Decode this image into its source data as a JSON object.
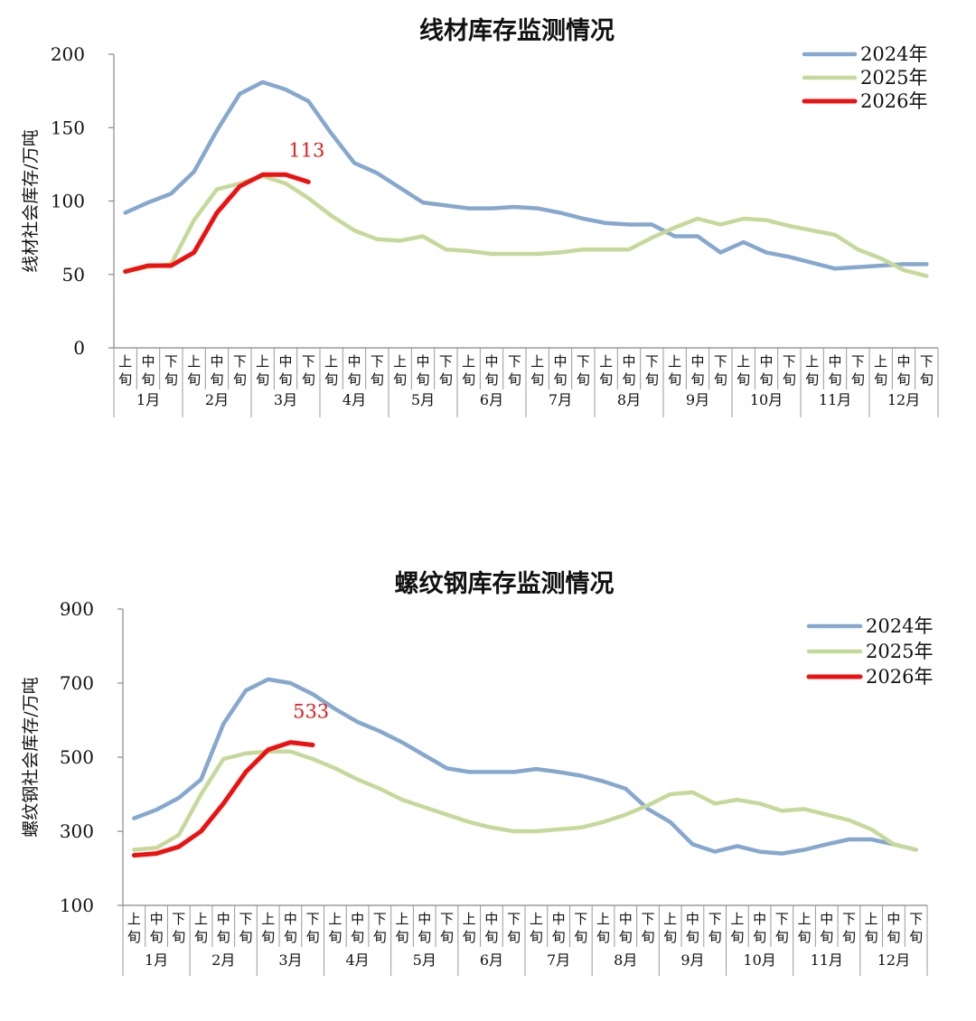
{
  "chart_data": [
    {
      "type": "line",
      "title": "线材库存监测情况",
      "ylabel": "线材社会库存/万吨",
      "xlabel": "",
      "ylim": [
        0,
        200
      ],
      "yticks": [
        0,
        50,
        100,
        150,
        200
      ],
      "months": [
        "1月",
        "2月",
        "3月",
        "4月",
        "5月",
        "6月",
        "7月",
        "8月",
        "9月",
        "10月",
        "11月",
        "12月"
      ],
      "periods": [
        "上旬",
        "中旬",
        "下旬"
      ],
      "legend": "top-right",
      "annotation": {
        "text": "113",
        "series": "2026年"
      },
      "series": [
        {
          "name": "2024年",
          "color": "#86a8cf",
          "values": [
            92,
            99,
            105,
            120,
            148,
            173,
            181,
            176,
            168,
            146,
            126,
            119,
            109,
            99,
            97,
            95,
            95,
            96,
            95,
            92,
            88,
            85,
            84,
            84,
            76,
            76,
            65,
            72,
            65,
            62,
            58,
            54,
            55,
            56,
            57,
            57
          ]
        },
        {
          "name": "2025年",
          "color": "#c5d99a",
          "values": [
            52,
            55,
            57,
            87,
            108,
            112,
            117,
            112,
            102,
            90,
            80,
            74,
            73,
            76,
            67,
            66,
            64,
            64,
            64,
            65,
            67,
            67,
            67,
            75,
            82,
            88,
            84,
            88,
            87,
            83,
            80,
            77,
            67,
            61,
            53,
            49
          ]
        },
        {
          "name": "2026年",
          "color": "#ee1111",
          "values": [
            52,
            56,
            56,
            65,
            92,
            110,
            118,
            118,
            113
          ]
        }
      ]
    },
    {
      "type": "line",
      "title": "螺纹钢库存监测情况",
      "ylabel": "螺纹钢社会库存/万吨",
      "xlabel": "",
      "ylim": [
        100,
        900
      ],
      "yticks": [
        100,
        300,
        500,
        700,
        900
      ],
      "months": [
        "1月",
        "2月",
        "3月",
        "4月",
        "5月",
        "6月",
        "7月",
        "8月",
        "9月",
        "10月",
        "11月",
        "12月"
      ],
      "periods": [
        "上旬",
        "中旬",
        "下旬"
      ],
      "legend": "top-right",
      "annotation": {
        "text": "533",
        "series": "2026年"
      },
      "series": [
        {
          "name": "2024年",
          "color": "#86a8cf",
          "values": [
            335,
            358,
            390,
            440,
            590,
            680,
            710,
            700,
            670,
            630,
            595,
            570,
            540,
            505,
            470,
            460,
            460,
            460,
            468,
            460,
            450,
            435,
            415,
            360,
            325,
            265,
            245,
            260,
            245,
            240,
            250,
            265,
            278,
            278,
            265,
            250
          ]
        },
        {
          "name": "2025年",
          "color": "#c5d99a",
          "values": [
            250,
            255,
            290,
            400,
            495,
            510,
            515,
            515,
            495,
            470,
            440,
            415,
            385,
            365,
            345,
            325,
            310,
            300,
            300,
            305,
            310,
            325,
            345,
            370,
            400,
            405,
            375,
            385,
            375,
            355,
            360,
            345,
            330,
            305,
            265,
            250
          ]
        },
        {
          "name": "2026年",
          "color": "#ee1111",
          "values": [
            235,
            240,
            258,
            300,
            375,
            460,
            520,
            540,
            533
          ]
        }
      ]
    }
  ]
}
